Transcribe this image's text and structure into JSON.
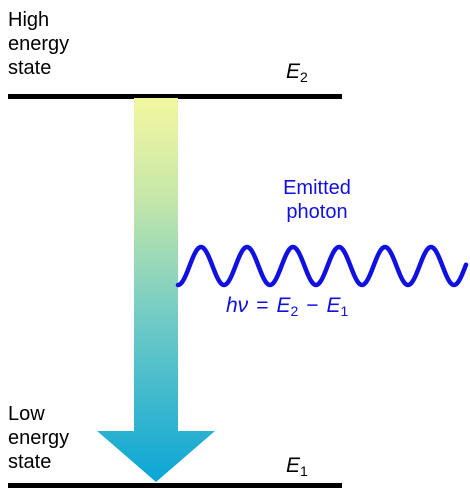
{
  "high_state": {
    "label": "High\nenergy\nstate",
    "symbol": "E",
    "subscript": "2"
  },
  "low_state": {
    "label": "Low\nenergy\nstate",
    "symbol": "E",
    "subscript": "1"
  },
  "photon": {
    "label": "Emitted\nphoton",
    "equation": {
      "lhs": "hν",
      "eq": "=",
      "term1": "E",
      "sub1": "2",
      "minus": "−",
      "term2": "E",
      "sub2": "1"
    }
  },
  "colors": {
    "wave": "#1010e0",
    "arrow_top": "#f4f7a0",
    "arrow_bottom": "#0aa6d6",
    "level_line": "#000000"
  }
}
